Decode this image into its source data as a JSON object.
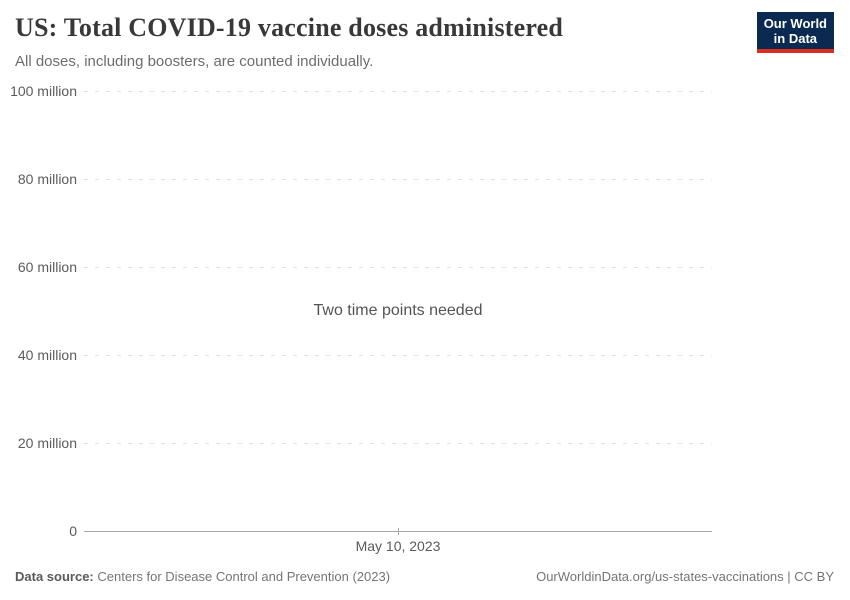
{
  "header": {
    "title": "US: Total COVID-19 vaccine doses administered",
    "subtitle": "All doses, including boosters, are counted individually.",
    "logo": {
      "line1": "Our World",
      "line2": "in Data",
      "bg_color": "#0a2a52",
      "accent_color": "#dc2d22"
    }
  },
  "chart": {
    "message": "Two time points needed",
    "yticks": [
      "100 million",
      "80 million",
      "60 million",
      "40 million",
      "20 million",
      "0"
    ],
    "xtick": "May 10, 2023"
  },
  "chart_data": {
    "type": "line",
    "title": "US: Total COVID-19 vaccine doses administered",
    "subtitle": "All doses, including boosters, are counted individually.",
    "series": [],
    "x": [
      "May 10, 2023"
    ],
    "xlabel": "",
    "ylabel": "",
    "ylim": [
      0,
      100000000
    ],
    "ytick_labels": [
      "0",
      "20 million",
      "40 million",
      "60 million",
      "80 million",
      "100 million"
    ],
    "grid": "horizontal dashed",
    "legend": "none",
    "annotation": "Two time points needed",
    "annotation_position": "center"
  },
  "footer": {
    "source_label": "Data source:",
    "source_value": "Centers for Disease Control and Prevention (2023)",
    "attribution": "OurWorldinData.org/us-states-vaccinations | CC BY"
  },
  "colors": {
    "title": "#383838",
    "subtitle": "#6d6d6d",
    "tick_label": "#5b5b5b",
    "gridline": "#e2e2e2",
    "axis": "#a7a7a7",
    "logo_bg": "#0a2a52",
    "logo_accent": "#dc2d22"
  }
}
